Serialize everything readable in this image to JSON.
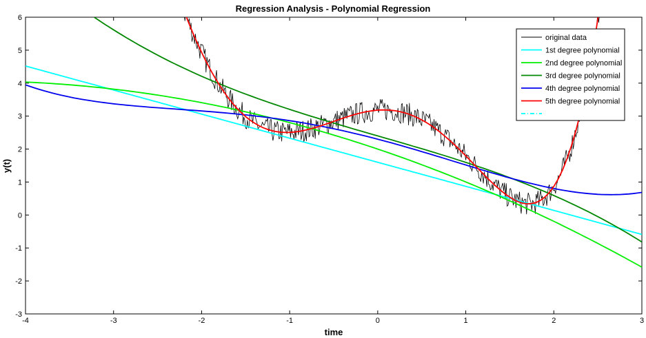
{
  "chart_data": {
    "type": "line",
    "title": "Regression Analysis - Polynomial Regression",
    "xlabel": "time",
    "ylabel": "y(t)",
    "xlim": [
      -4,
      3
    ],
    "ylim": [
      -3,
      6
    ],
    "x_ticks": [
      -4,
      -3,
      -2,
      -1,
      0,
      1,
      2,
      3
    ],
    "y_ticks": [
      -3,
      -2,
      -1,
      0,
      1,
      2,
      3,
      4,
      5,
      6
    ],
    "grid": false,
    "legend_position": "top-right",
    "x_step": 0.05,
    "series": [
      {
        "name": "original data",
        "color": "#000000",
        "style": "noisy",
        "noise_amplitude": 0.35,
        "noise_seed": 7
      },
      {
        "name": "1st degree polynomial",
        "color": "#00FFFF",
        "style": "solid",
        "coefficients": [
          1.6,
          -0.73
        ]
      },
      {
        "name": "2nd degree polynomial",
        "color": "#00EE00",
        "style": "solid",
        "coefficients": [
          2.0,
          -0.9,
          -0.098
        ]
      },
      {
        "name": "3rd degree polynomial",
        "color": "#008800",
        "style": "solid",
        "coefficients": [
          2.4,
          -0.77,
          0.0,
          -0.0336
        ]
      },
      {
        "name": "4th degree polynomial",
        "color": "#0000EE",
        "style": "solid",
        "coefficients": [
          2.3,
          -0.7,
          -0.12,
          0.028,
          0.01
        ]
      },
      {
        "name": "5th degree polynomial",
        "color": "#FF0000",
        "style": "solid",
        "coefficients": [
          3.18,
          0.2,
          -1.35,
          -0.64,
          0.32,
          0.084
        ]
      },
      {
        "name": "",
        "color": "#00FFFF",
        "style": "dashdot",
        "legend_only": true
      }
    ]
  }
}
